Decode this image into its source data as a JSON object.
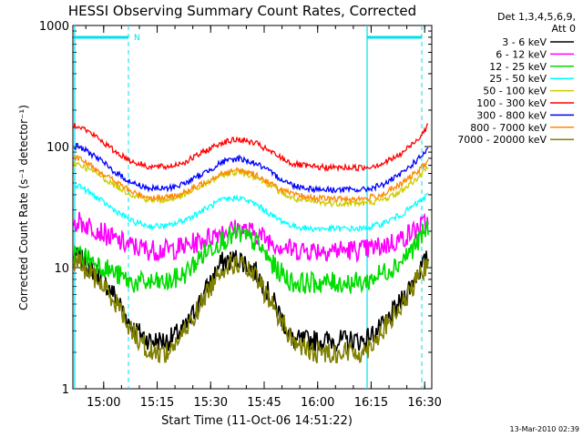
{
  "chart_data": {
    "type": "line",
    "title": "HESSI Observing Summary Count Rates, Corrected",
    "xlabel": "Start Time (11-Oct-06 14:51:22)",
    "ylabel": "Corrected Count Rate (s⁻¹ detector⁻¹)",
    "timestamp": "13-Mar-2010 02:39",
    "scale": {
      "y": "log"
    },
    "xlim": [
      "14:51:22",
      "16:32:00"
    ],
    "ylim": [
      1,
      1000
    ],
    "x_ticks": [
      "15:00",
      "15:15",
      "15:30",
      "15:45",
      "16:00",
      "16:15",
      "16:30"
    ],
    "y_ticks": [
      "1",
      "10",
      "100",
      "1000"
    ],
    "legend": {
      "header": [
        "Det 1,3,4,5,6,9,",
        "Att 0"
      ],
      "placement": "right"
    },
    "x": [
      "14:53",
      "14:58",
      "15:03",
      "15:08",
      "15:13",
      "15:18",
      "15:23",
      "15:28",
      "15:33",
      "15:38",
      "15:43",
      "15:48",
      "15:53",
      "15:58",
      "16:03",
      "16:08",
      "16:13",
      "16:18",
      "16:23",
      "16:28",
      "16:31"
    ],
    "series": [
      {
        "name": "3 - 6 keV",
        "color": "#000000",
        "values": [
          12,
          9,
          6,
          3.2,
          2.5,
          2.5,
          3.2,
          6,
          11,
          12,
          9,
          5,
          2.5,
          2.5,
          2.5,
          2.5,
          2.5,
          3.2,
          5,
          9,
          12
        ]
      },
      {
        "name": "6 - 12 keV",
        "color": "#ff00ff",
        "values": [
          24,
          21,
          17,
          15,
          14,
          14,
          15,
          17,
          20,
          21,
          19,
          16,
          14,
          14,
          14,
          14,
          14,
          15,
          17,
          21,
          24
        ]
      },
      {
        "name": "12 - 25 keV",
        "color": "#00dd00",
        "values": [
          13,
          11,
          9,
          7.5,
          7.5,
          7.5,
          9,
          13,
          17,
          19,
          16,
          10,
          7.5,
          7.5,
          7.5,
          7.5,
          7.5,
          9,
          11,
          16,
          22
        ]
      },
      {
        "name": "25 - 50 keV",
        "color": "#00ffff",
        "values": [
          48,
          38,
          30,
          24,
          22,
          22,
          25,
          30,
          36,
          38,
          33,
          26,
          22,
          21,
          21,
          21,
          21,
          23,
          27,
          34,
          40
        ]
      },
      {
        "name": "50 - 100 keV",
        "color": "#cccc00",
        "values": [
          72,
          60,
          48,
          40,
          36,
          36,
          40,
          48,
          58,
          62,
          56,
          45,
          37,
          35,
          34,
          34,
          34,
          36,
          42,
          55,
          68
        ]
      },
      {
        "name": "100 - 300 keV",
        "color": "#ff0000",
        "values": [
          150,
          120,
          92,
          75,
          68,
          68,
          75,
          90,
          108,
          115,
          105,
          86,
          72,
          68,
          67,
          67,
          67,
          72,
          85,
          115,
          150
        ]
      },
      {
        "name": "300 - 800 keV",
        "color": "#0000ff",
        "values": [
          100,
          82,
          62,
          50,
          45,
          45,
          50,
          60,
          74,
          80,
          72,
          58,
          48,
          45,
          44,
          44,
          44,
          48,
          58,
          78,
          95
        ]
      },
      {
        "name": "800 - 7000 keV",
        "color": "#ff8800",
        "values": [
          80,
          65,
          52,
          42,
          38,
          38,
          42,
          50,
          60,
          64,
          58,
          47,
          40,
          38,
          37,
          37,
          37,
          40,
          48,
          62,
          76
        ]
      },
      {
        "name": "7000 - 20000 keV",
        "color": "#808000",
        "values": [
          11,
          8,
          5.5,
          3,
          2,
          2,
          3,
          5.5,
          10,
          11,
          8,
          4.5,
          2.5,
          2,
          2,
          2,
          2,
          3,
          4.5,
          8,
          11
        ]
      }
    ],
    "marker_label": "N"
  }
}
